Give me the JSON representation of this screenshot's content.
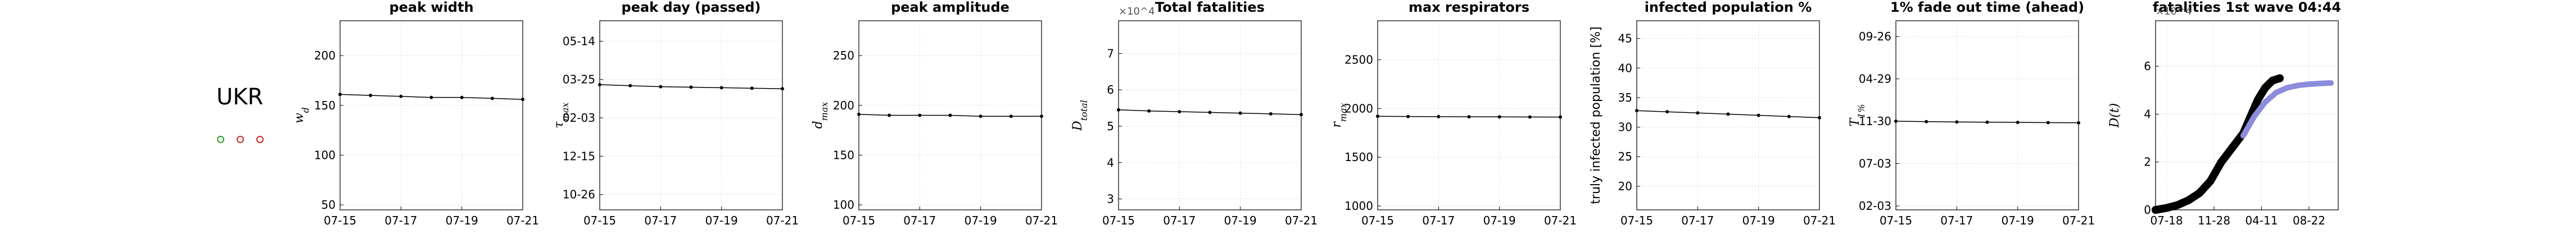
{
  "country": "UKR",
  "status_dots": [
    "#2ca02c",
    "#d62728",
    "#d62728"
  ],
  "chart_data": [
    {
      "type": "line",
      "title": "peak width",
      "ylabel": "w_d",
      "x": [
        "07-15",
        "07-16",
        "07-17",
        "07-18",
        "07-19",
        "07-20",
        "07-21"
      ],
      "xticks": [
        "07-15",
        "07-17",
        "07-19",
        "07-21"
      ],
      "values": [
        161,
        160,
        159,
        158,
        158,
        157,
        156
      ],
      "ylim": [
        45,
        235
      ],
      "yticks": [
        50,
        100,
        150,
        200
      ],
      "yticklabels": [
        "50",
        "100",
        "150",
        "200"
      ]
    },
    {
      "type": "line",
      "title": "peak day (passed)",
      "ylabel": "τ_max",
      "x": [
        "07-15",
        "07-16",
        "07-17",
        "07-18",
        "07-19",
        "07-20",
        "07-21"
      ],
      "xticks": [
        "07-15",
        "07-17",
        "07-19",
        "07-21"
      ],
      "values": [
        215,
        213,
        211,
        210,
        209,
        208,
        207
      ],
      "ylim": [
        -30,
        340
      ],
      "yticks": [
        0,
        75,
        150,
        225,
        300
      ],
      "yticklabels": [
        "10-26",
        "12-15",
        "02-03",
        "03-25",
        "05-14"
      ]
    },
    {
      "type": "line",
      "title": "peak amplitude",
      "ylabel": "d_max",
      "x": [
        "07-15",
        "07-16",
        "07-17",
        "07-18",
        "07-19",
        "07-20",
        "07-21"
      ],
      "xticks": [
        "07-15",
        "07-17",
        "07-19",
        "07-21"
      ],
      "values": [
        191,
        190,
        190,
        190,
        189,
        189,
        189
      ],
      "ylim": [
        95,
        285
      ],
      "yticks": [
        100,
        150,
        200,
        250
      ],
      "yticklabels": [
        "100",
        "150",
        "200",
        "250"
      ]
    },
    {
      "type": "line",
      "title": "Total fatalities",
      "ylabel": "D_total",
      "multiplier": "×10^4",
      "x": [
        "07-15",
        "07-16",
        "07-17",
        "07-18",
        "07-19",
        "07-20",
        "07-21"
      ],
      "xticks": [
        "07-15",
        "07-17",
        "07-19",
        "07-21"
      ],
      "values": [
        5.45,
        5.42,
        5.4,
        5.38,
        5.36,
        5.34,
        5.32
      ],
      "ylim": [
        2.7,
        7.9
      ],
      "yticks": [
        3,
        4,
        5,
        6,
        7
      ],
      "yticklabels": [
        "3",
        "4",
        "5",
        "6",
        "7"
      ]
    },
    {
      "type": "line",
      "title": "max respirators",
      "ylabel": "r_max",
      "x": [
        "07-15",
        "07-16",
        "07-17",
        "07-18",
        "07-19",
        "07-20",
        "07-21"
      ],
      "xticks": [
        "07-15",
        "07-17",
        "07-19",
        "07-21"
      ],
      "values": [
        1920,
        1918,
        1916,
        1915,
        1914,
        1913,
        1912
      ],
      "ylim": [
        960,
        2900
      ],
      "yticks": [
        1000,
        1500,
        2000,
        2500
      ],
      "yticklabels": [
        "1000",
        "1500",
        "2000",
        "2500"
      ]
    },
    {
      "type": "line",
      "title": "infected population %",
      "ylabel": "truly infected population [%]",
      "x": [
        "07-15",
        "07-16",
        "07-17",
        "07-18",
        "07-19",
        "07-20",
        "07-21"
      ],
      "xticks": [
        "07-15",
        "07-17",
        "07-19",
        "07-21"
      ],
      "values": [
        32.8,
        32.6,
        32.4,
        32.2,
        32.0,
        31.8,
        31.6
      ],
      "ylim": [
        16,
        48
      ],
      "yticks": [
        20,
        25,
        30,
        35,
        40,
        45
      ],
      "yticklabels": [
        "20",
        "25",
        "30",
        "35",
        "40",
        "45"
      ]
    },
    {
      "type": "line",
      "title": "1% fade out time (ahead)",
      "ylabel": "T_1%",
      "x": [
        "07-15",
        "07-16",
        "07-17",
        "07-18",
        "07-19",
        "07-20",
        "07-21"
      ],
      "xticks": [
        "07-15",
        "07-17",
        "07-19",
        "07-21"
      ],
      "values": [
        580,
        578,
        576,
        575,
        574,
        573,
        572
      ],
      "ylim": [
        130,
        1090
      ],
      "yticks": [
        150,
        365,
        580,
        795,
        1010
      ],
      "yticklabels": [
        "02-03",
        "07-03",
        "11-30",
        "04-29",
        "09-26"
      ]
    },
    {
      "type": "scatter",
      "title": "fatalities 1st wave 04:44",
      "ylabel": "D(t)",
      "multiplier": "×10^4",
      "xlim": [
        0,
        500
      ],
      "xticks": [
        30,
        160,
        290,
        420
      ],
      "xticklabels": [
        "07-18",
        "11-28",
        "04-11",
        "08-22"
      ],
      "ylim": [
        0,
        7.9
      ],
      "yticks": [
        0,
        2,
        4,
        6
      ],
      "yticklabels": [
        "0",
        "2",
        "4",
        "6"
      ],
      "series": [
        {
          "color": "#000000",
          "points": [
            [
              0,
              0
            ],
            [
              30,
              0.08
            ],
            [
              60,
              0.2
            ],
            [
              90,
              0.4
            ],
            [
              120,
              0.7
            ],
            [
              150,
              1.2
            ],
            [
              180,
              2.0
            ],
            [
              210,
              2.6
            ],
            [
              240,
              3.2
            ],
            [
              260,
              3.9
            ],
            [
              280,
              4.6
            ],
            [
              300,
              5.1
            ],
            [
              320,
              5.4
            ],
            [
              340,
              5.5
            ]
          ]
        },
        {
          "color": "#8c8cdc",
          "points": [
            [
              240,
              3.1
            ],
            [
              270,
              3.9
            ],
            [
              300,
              4.5
            ],
            [
              330,
              4.9
            ],
            [
              360,
              5.1
            ],
            [
              390,
              5.2
            ],
            [
              420,
              5.25
            ],
            [
              450,
              5.28
            ],
            [
              480,
              5.3
            ]
          ]
        }
      ]
    }
  ]
}
